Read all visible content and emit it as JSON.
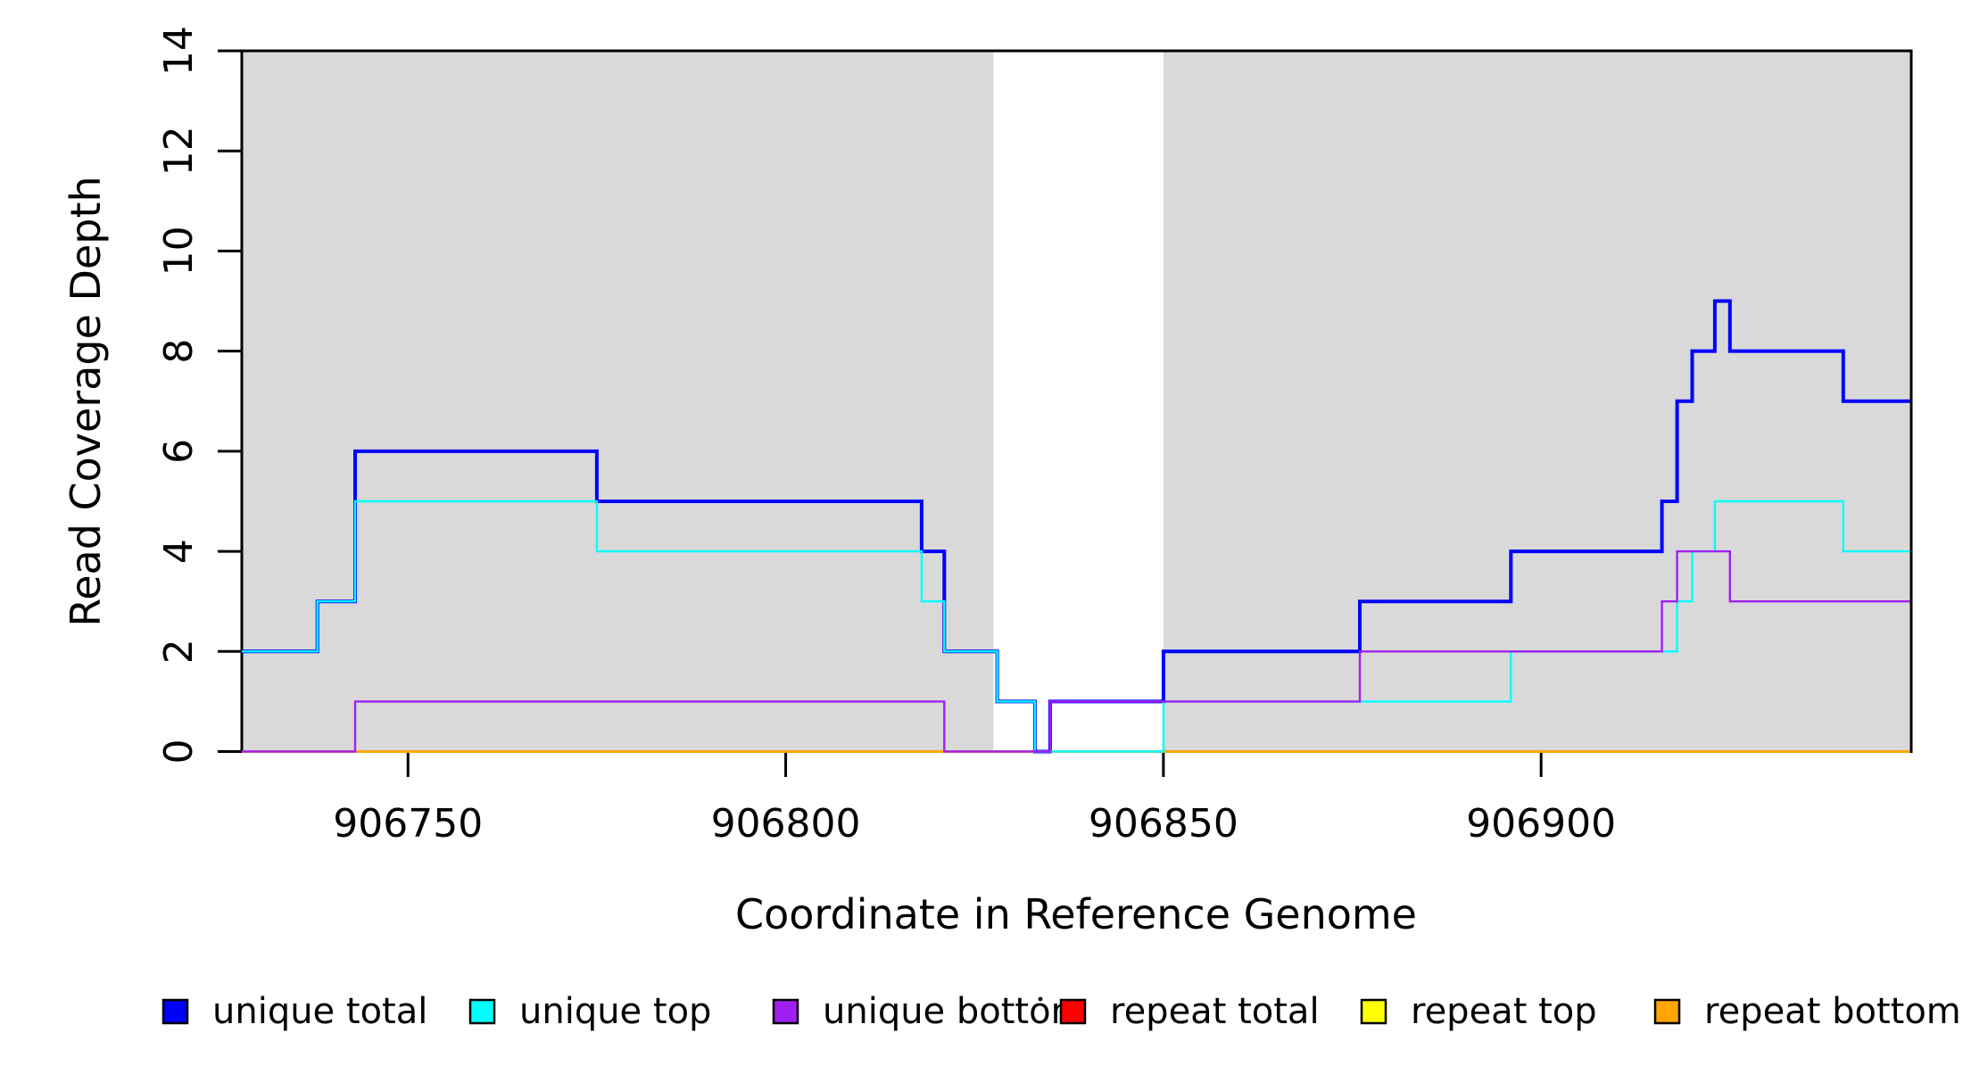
{
  "figure": {
    "background": "#FFFFFF",
    "shaded_region_color": "#D9D9D9",
    "axis_color": "#000000"
  },
  "y_axis": {
    "title": "Read Coverage Depth",
    "tick_labels": [
      "0",
      "2",
      "4",
      "6",
      "8",
      "10",
      "12",
      "14"
    ]
  },
  "x_axis": {
    "title": "Coordinate in Reference Genome",
    "tick_labels": [
      "906750",
      "906800",
      "906850",
      "906900"
    ]
  },
  "legend": {
    "items": [
      {
        "id": "unique-total",
        "label": "unique total",
        "color": "#0000FF"
      },
      {
        "id": "unique-top",
        "label": "unique top",
        "color": "#00FFFF"
      },
      {
        "id": "unique-bottom",
        "label": "unique bottom",
        "color": "#A020F0"
      },
      {
        "id": "repeat-total",
        "label": "repeat total",
        "color": "#FF0000"
      },
      {
        "id": "repeat-top",
        "label": "repeat top",
        "color": "#FFFF00"
      },
      {
        "id": "repeat-bottom",
        "label": "repeat bottom",
        "color": "#FFA500"
      }
    ]
  },
  "chart_data": {
    "type": "step-line",
    "title": "",
    "xlabel": "Coordinate in Reference Genome",
    "ylabel": "Read Coverage Depth",
    "x_range": [
      906728,
      906949
    ],
    "ylim": [
      0,
      14
    ],
    "x_ticks": [
      906750,
      906800,
      906850,
      906900
    ],
    "y_ticks": [
      0,
      2,
      4,
      6,
      8,
      10,
      12,
      14
    ],
    "grid": false,
    "legend_position": "bottom",
    "shaded_regions": [
      {
        "start": 906728,
        "end": 906827.5,
        "color": "#D9D9D9"
      },
      {
        "start": 906850,
        "end": 906949,
        "color": "#D9D9D9"
      }
    ],
    "draw_order": [
      "repeat-total",
      "repeat-top",
      "repeat-bottom",
      "unique-total",
      "unique-top",
      "unique-bottom"
    ],
    "series": [
      {
        "id": "unique-total",
        "name": "unique total",
        "color": "#0000FF",
        "line_width": 4,
        "steps": [
          [
            906728,
            2
          ],
          [
            906738,
            3
          ],
          [
            906743,
            6
          ],
          [
            906775,
            5
          ],
          [
            906818,
            4
          ],
          [
            906821,
            2
          ],
          [
            906828,
            1
          ],
          [
            906833,
            0
          ],
          [
            906835,
            1
          ],
          [
            906850,
            2
          ],
          [
            906876,
            3
          ],
          [
            906896,
            4
          ],
          [
            906916,
            5
          ],
          [
            906918,
            7
          ],
          [
            906920,
            8
          ],
          [
            906923,
            9
          ],
          [
            906925,
            8
          ],
          [
            906940,
            7
          ]
        ]
      },
      {
        "id": "unique-top",
        "name": "unique top",
        "color": "#00FFFF",
        "line_width": 2.4,
        "steps": [
          [
            906728,
            2
          ],
          [
            906738,
            3
          ],
          [
            906743,
            5
          ],
          [
            906775,
            4
          ],
          [
            906818,
            3
          ],
          [
            906821,
            2
          ],
          [
            906828,
            1
          ],
          [
            906833,
            0
          ],
          [
            906850,
            1
          ],
          [
            906896,
            2
          ],
          [
            906918,
            3
          ],
          [
            906920,
            4
          ],
          [
            906923,
            5
          ],
          [
            906940,
            4
          ]
        ]
      },
      {
        "id": "unique-bottom",
        "name": "unique bottom",
        "color": "#A020F0",
        "line_width": 2.4,
        "steps": [
          [
            906728,
            0
          ],
          [
            906743,
            1
          ],
          [
            906821,
            0
          ],
          [
            906835,
            1
          ],
          [
            906876,
            2
          ],
          [
            906916,
            3
          ],
          [
            906918,
            4
          ],
          [
            906925,
            3
          ]
        ]
      },
      {
        "id": "repeat-total",
        "name": "repeat total",
        "color": "#FF0000",
        "line_width": 2.4,
        "steps": [
          [
            906728,
            0
          ]
        ]
      },
      {
        "id": "repeat-top",
        "name": "repeat top",
        "color": "#FFFF00",
        "line_width": 2.4,
        "steps": [
          [
            906728,
            0
          ]
        ]
      },
      {
        "id": "repeat-bottom",
        "name": "repeat bottom",
        "color": "#FFA500",
        "line_width": 3,
        "steps": [
          [
            906728,
            0
          ]
        ]
      }
    ]
  }
}
